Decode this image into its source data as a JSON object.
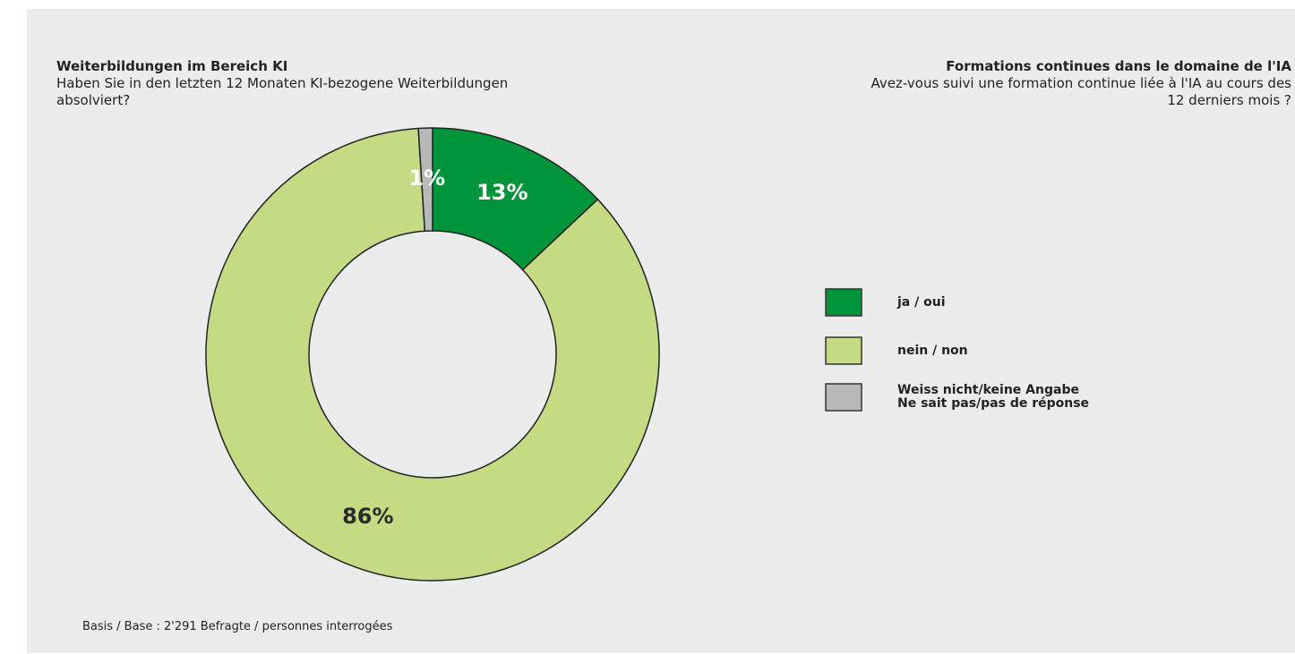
{
  "chart_data": {
    "type": "donut",
    "title": "Weiterbildungen im Bereich KI",
    "subtitle": [
      "Haben Sie in den letzten 12 Monaten KI-bezogene Weiterbildungen",
      "absolviert?"
    ],
    "title_fr": "Formations continues dans le domaine de l'IA",
    "subtitle_fr": [
      "Avez-vous suivi une formation continue liée à l'IA au cours des",
      "12 derniers mois ?"
    ],
    "note": "Basis  / Base : 2'291 Befragte / personnes interrogées",
    "categories": [
      "ja / oui",
      "nein / non",
      "Weiss nicht/keine Angabe\nNe sait pas/pas de réponse"
    ],
    "values": [
      13,
      86,
      1
    ],
    "value_labels": [
      "13%",
      "86%",
      "1%"
    ],
    "colors": [
      "#00953a",
      "#c4da83",
      "#b8b8b8"
    ],
    "label_colors": [
      "#ffffff",
      "#2b2b2b",
      "#ffffff"
    ]
  }
}
